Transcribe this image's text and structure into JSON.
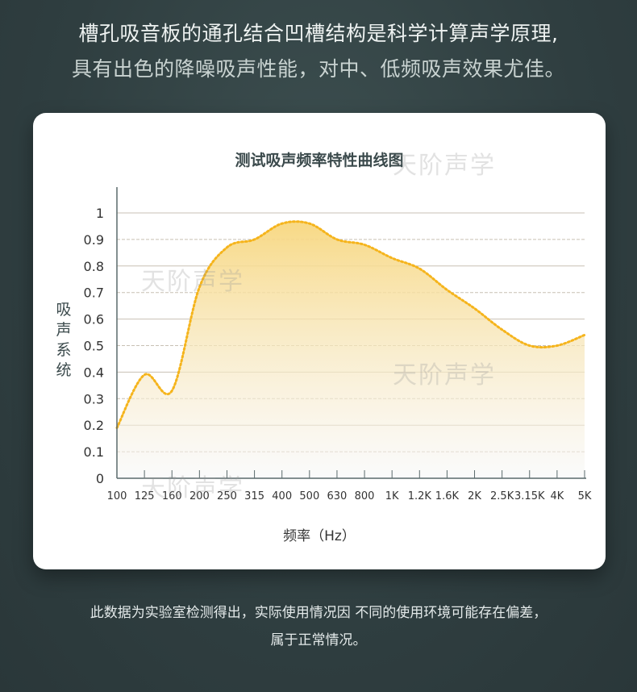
{
  "header": {
    "line1": "槽孔吸音板的通孔结合凹槽结构是科学计算声学原理,",
    "line2": "具有出色的降噪吸声性能，对中、低频吸声效果尤佳。"
  },
  "watermark": "天阶声学",
  "chart_data": {
    "type": "area",
    "title": "测试吸声频率特性曲线图",
    "xlabel": "频率（Hz）",
    "ylabel": "吸声系统",
    "categories": [
      "100",
      "125",
      "160",
      "200",
      "250",
      "315",
      "400",
      "500",
      "630",
      "800",
      "1K",
      "1.2K",
      "1.6K",
      "2K",
      "2.5K",
      "3.15K",
      "4K",
      "5K"
    ],
    "values": [
      0.19,
      0.39,
      0.33,
      0.72,
      0.87,
      0.9,
      0.96,
      0.96,
      0.9,
      0.88,
      0.83,
      0.79,
      0.71,
      0.64,
      0.56,
      0.5,
      0.5,
      0.54
    ],
    "yticks": [
      "0",
      "0.1",
      "0.2",
      "0.3",
      "0.4",
      "0.5",
      "0.6",
      "0.7",
      "0.8",
      "0.9",
      "1"
    ],
    "ylim": [
      0,
      1.1
    ],
    "grid": true,
    "line_color": "#f5b41c",
    "fill_color": "#f8d77f"
  },
  "footer": {
    "line1": "此数据为实验室检测得出，实际使用情况因 不同的使用环境可能存在偏差，",
    "line2": "属于正常情况。"
  }
}
